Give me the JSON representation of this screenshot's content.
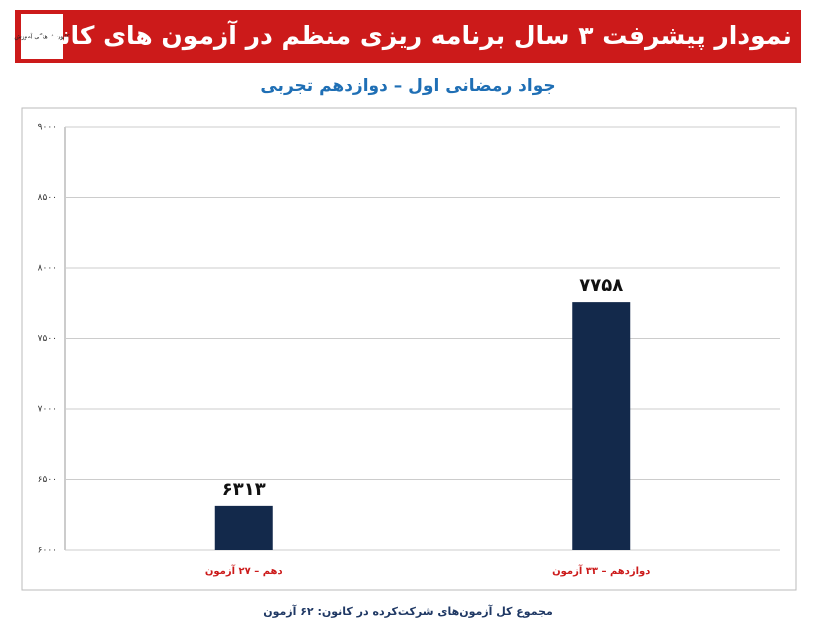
{
  "logo": "کانون فرهنگی آموزش",
  "chart_data": {
    "type": "bar",
    "title": "نمودار پیشرفت ۳ سال برنامه ریزی منظم در آزمون های کانون",
    "subtitle": "جواد رمضانی اول – دوازدهم تجربی",
    "categories": [
      "دهم – ۲۷ آزمون",
      "دوازدهم – ۳۳ آزمون"
    ],
    "values": [
      6313,
      7758
    ],
    "value_labels": [
      "۶۳۱۳",
      "۷۷۵۸"
    ],
    "color": "#13294b",
    "ylim": [
      6000,
      9000
    ],
    "yticks": [
      {
        "value": 6000,
        "label": "۶۰۰۰"
      },
      {
        "value": 6500,
        "label": "۶۵۰۰"
      },
      {
        "value": 7000,
        "label": "۷۰۰۰"
      },
      {
        "value": 7500,
        "label": "۷۵۰۰"
      },
      {
        "value": 8000,
        "label": "۸۰۰۰"
      },
      {
        "value": 8500,
        "label": "۸۵۰۰"
      },
      {
        "value": 9000,
        "label": "۹۰۰۰"
      }
    ],
    "grid": true,
    "footnote": "مجموع کل آزمون‌های شرکت‌کرده در کانون: ۶۲ آزمون"
  }
}
